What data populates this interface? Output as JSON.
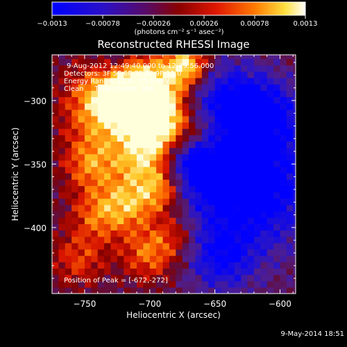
{
  "chart_data": {
    "type": "heatmap",
    "title": "Reconstructed RHESSI Image",
    "xlabel": "Heliocentric X (arcsec)",
    "ylabel": "Heliocentric Y (arcsec)",
    "xlim": [
      -775,
      -588
    ],
    "ylim": [
      -452,
      -264
    ],
    "x_ticks": [
      -750,
      -700,
      -650,
      -600
    ],
    "x_tick_labels": [
      "−750",
      "−700",
      "−650",
      "−600"
    ],
    "y_ticks": [
      -300,
      -350,
      -400
    ],
    "y_tick_labels": [
      "−300",
      "−350",
      "−400"
    ],
    "colorbar": {
      "range": [
        -0.0013,
        0.0013
      ],
      "ticks": [
        -0.0013,
        -0.00078,
        -0.00026,
        0.00026,
        0.00078,
        0.0013
      ],
      "tick_labels": [
        "−0.0013",
        "−0.00078",
        "−0.00026",
        "0.00026",
        "0.00078",
        "0.0013"
      ],
      "units_label": "(photons cm⁻² s⁻¹ asec⁻²)",
      "colormap": "blue-purple-red-orange-yellow-white"
    },
    "annotations": [
      "9-Aug-2012 12:49:40.000 to 12:49:56.000",
      "Detectors: 3F 5F 6F 7F 8F 9F 11.0",
      "Energy Range: 12.0 - 25.0 keV",
      "Clean     Total counts: 326.",
      "Position of Peak = [-672,-272]"
    ],
    "peak_position": [
      -672,
      -272
    ],
    "footer_date": "9-May-2014 18:51"
  }
}
